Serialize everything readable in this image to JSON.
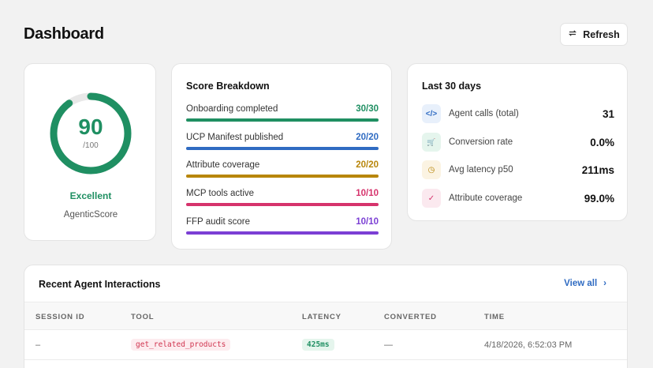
{
  "header": {
    "title": "Dashboard",
    "refresh_label": "Refresh"
  },
  "score": {
    "value": "90",
    "max_text": "/100",
    "fraction": 0.9,
    "rating": "Excellent",
    "caption": "AgenticScore",
    "color": "#1f8f62"
  },
  "breakdown": {
    "title": "Score Breakdown",
    "items": [
      {
        "label": "Onboarding completed",
        "value": "30/30",
        "fraction": 1.0,
        "color": "#1f8f62"
      },
      {
        "label": "UCP Manifest published",
        "value": "20/20",
        "fraction": 1.0,
        "color": "#2f6bc2"
      },
      {
        "label": "Attribute coverage",
        "value": "20/20",
        "fraction": 1.0,
        "color": "#b8860b"
      },
      {
        "label": "MCP tools active",
        "value": "10/10",
        "fraction": 1.0,
        "color": "#d6336c"
      },
      {
        "label": "FFP audit score",
        "value": "10/10",
        "fraction": 1.0,
        "color": "#7b3fd4"
      }
    ]
  },
  "stats": {
    "title": "Last 30 days",
    "items": [
      {
        "label": "Agent calls (total)",
        "value": "31",
        "icon": "code-icon",
        "icon_glyph": "</>",
        "icon_color": "#2f6bc2",
        "icon_bg": "#e8f0fb"
      },
      {
        "label": "Conversion rate",
        "value": "0.0%",
        "icon": "cart-icon",
        "icon_glyph": "🛒",
        "icon_color": "#1f8f62",
        "icon_bg": "#e5f5ed"
      },
      {
        "label": "Avg latency p50",
        "value": "211ms",
        "icon": "clock-icon",
        "icon_glyph": "◷",
        "icon_color": "#b8860b",
        "icon_bg": "#fbf3e2"
      },
      {
        "label": "Attribute coverage",
        "value": "99.0%",
        "icon": "check-circle-icon",
        "icon_glyph": "✓",
        "icon_color": "#d6336c",
        "icon_bg": "#fbe9ef"
      }
    ]
  },
  "interactions": {
    "title": "Recent Agent Interactions",
    "view_all": "View all",
    "columns": [
      "SESSION ID",
      "TOOL",
      "LATENCY",
      "CONVERTED",
      "TIME"
    ],
    "rows": [
      {
        "session": "–",
        "tool": "get_related_products",
        "latency": "425ms",
        "converted": "—",
        "time": "4/18/2026, 6:52:03 PM"
      }
    ]
  }
}
